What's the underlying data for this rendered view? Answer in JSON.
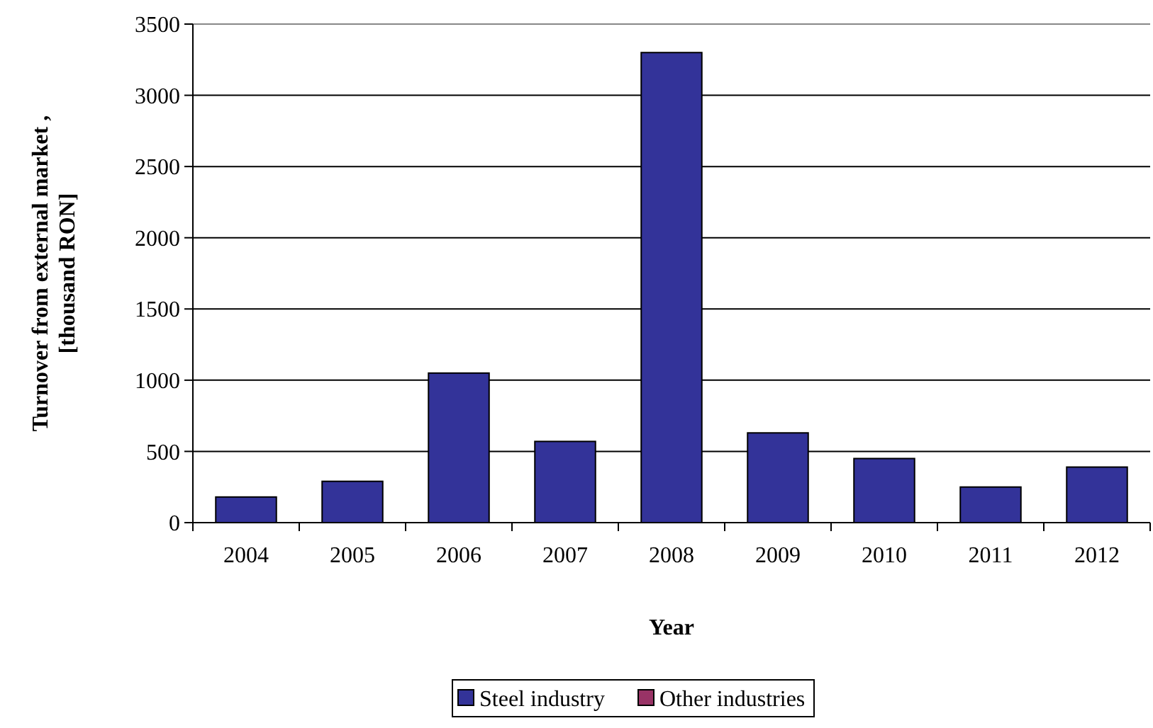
{
  "chart_data": {
    "type": "bar",
    "xlabel": "Year",
    "ylabel": "Turnover from external market , [thousand RON]",
    "categories": [
      "2004",
      "2005",
      "2006",
      "2007",
      "2008",
      "2009",
      "2010",
      "2011",
      "2012"
    ],
    "series": [
      {
        "name": "Steel industry",
        "color": "#333399",
        "values": [
          180,
          290,
          1050,
          570,
          3300,
          630,
          450,
          250,
          390
        ]
      },
      {
        "name": "Other industries",
        "color": "#993366",
        "values": [
          0,
          0,
          0,
          0,
          0,
          0,
          0,
          0,
          0
        ]
      }
    ],
    "stacked": true,
    "ylim": [
      0,
      3500
    ],
    "yticks": [
      0,
      500,
      1000,
      1500,
      2000,
      2500,
      3000,
      3500
    ],
    "grid": "y",
    "legend": "bottom"
  }
}
